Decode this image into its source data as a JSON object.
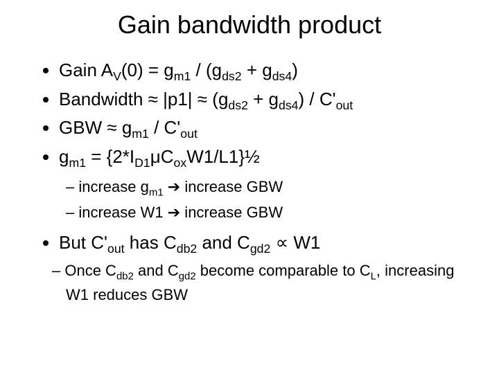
{
  "title": "Gain bandwidth product",
  "b1_pre": "Gain A",
  "b1_sub1": "V",
  "b1_mid1": "(0) = g",
  "b1_sub2": "m1",
  "b1_mid2": " / (g",
  "b1_sub3": "ds2",
  "b1_mid3": " + g",
  "b1_sub4": "ds4",
  "b1_post": ")",
  "b2_pre": "Bandwidth ≈ |p1| ≈ (g",
  "b2_sub1": "ds2",
  "b2_mid1": " + g",
  "b2_sub2": "ds4",
  "b2_mid2": ") / C'",
  "b2_sub3": "out",
  "b3_pre": "GBW ≈ g",
  "b3_sub1": "m1",
  "b3_mid1": " / C'",
  "b3_sub2": "out",
  "b4_pre": "g",
  "b4_sub1": "m1",
  "b4_mid1": " = {2*I",
  "b4_sub2": "D1",
  "b4_mid2": "μC",
  "b4_sub3": "ox",
  "b4_post": "W1/L1}½",
  "s1_pre": "increase g",
  "s1_sub1": "m1",
  "s1_mid": " ",
  "s1_post": " increase GBW",
  "s2_pre": "increase W1 ",
  "s2_post": " increase GBW",
  "b5_pre": "But C'",
  "b5_sub1": "out",
  "b5_mid1": " has C",
  "b5_sub2": "db2",
  "b5_mid2": " and C",
  "b5_sub3": "gd2",
  "b5_post": " ∝ W1",
  "s3_pre": "Once C",
  "s3_sub1": "db2",
  "s3_mid1": " and C",
  "s3_sub2": "gd2",
  "s3_mid2": " become comparable to C",
  "s3_sub3": "L",
  "s3_post": ", increasing W1 reduces GBW",
  "arrow": "➔",
  "colors": {
    "background": "#ffffff",
    "text": "#000000"
  },
  "fonts": {
    "title_size": 36,
    "body_size": 26,
    "sub_size": 22
  }
}
